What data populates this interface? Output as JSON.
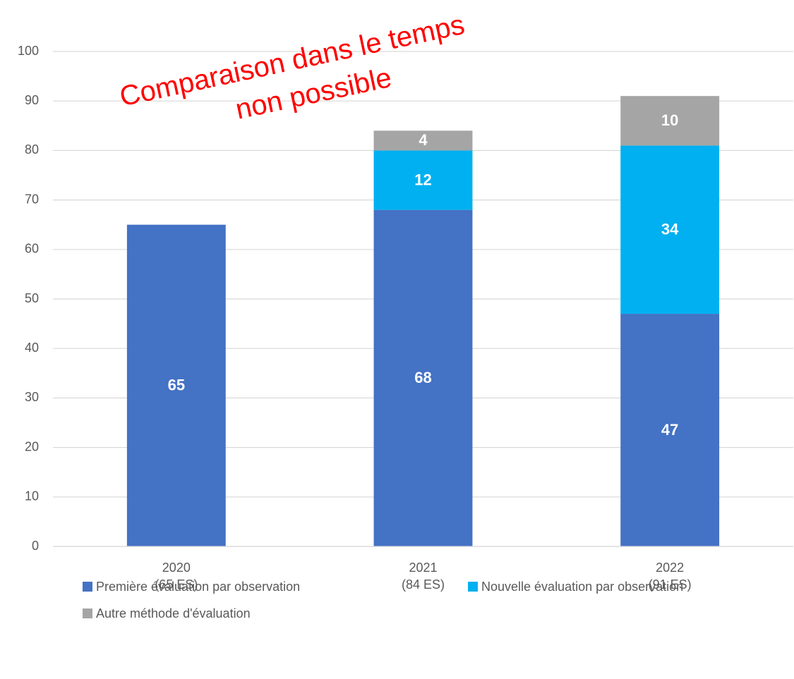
{
  "chart_data": {
    "type": "stacked-bar",
    "annotation": [
      "Comparaison dans le temps",
      "non possible"
    ],
    "categories": [
      [
        "2020",
        "(65 ES)"
      ],
      [
        "2021",
        "(84 ES)"
      ],
      [
        "2022",
        "(91 ES)"
      ]
    ],
    "series": [
      {
        "name": "Première évaluation par observation",
        "color": "#4472c4",
        "values": [
          65,
          68,
          47
        ]
      },
      {
        "name": "Nouvelle évaluation par observation",
        "color": "#00b0f0",
        "values": [
          null,
          12,
          34
        ]
      },
      {
        "name": "Autre méthode d'évaluation",
        "color": "#a5a5a5",
        "values": [
          null,
          4,
          10
        ]
      }
    ],
    "ylim": [
      0,
      100
    ],
    "yticks": [
      0,
      10,
      20,
      30,
      40,
      50,
      60,
      70,
      80,
      90,
      100
    ],
    "grid": true,
    "legend": "bottom"
  }
}
